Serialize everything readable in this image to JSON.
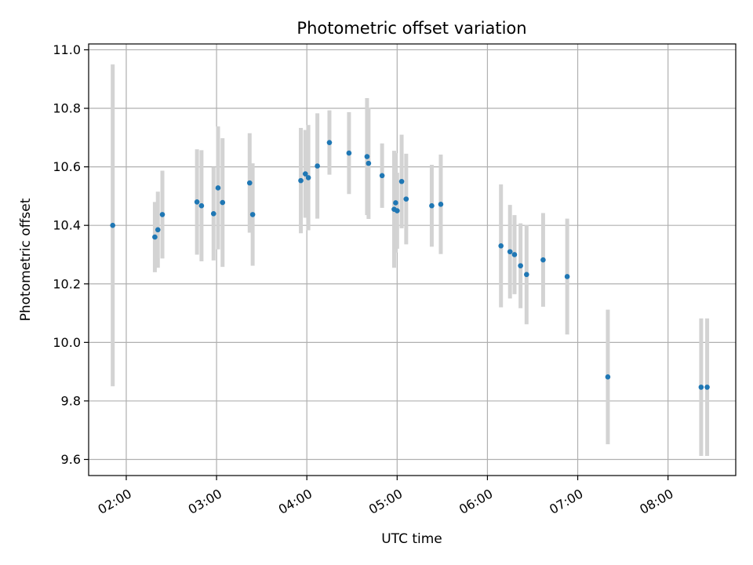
{
  "chart_data": {
    "type": "scatter",
    "title": "Photometric offset variation",
    "xlabel": "UTC time",
    "ylabel": "Photometric offset",
    "x_axis_type": "time",
    "xlim": [
      "01:35",
      "08:45"
    ],
    "ylim": [
      9.545,
      11.02
    ],
    "x_ticks": [
      "02:00",
      "03:00",
      "04:00",
      "05:00",
      "06:00",
      "07:00",
      "08:00"
    ],
    "y_ticks": [
      "9.6",
      "9.8",
      "10.0",
      "10.2",
      "10.4",
      "10.6",
      "10.8",
      "11.0"
    ],
    "grid": true,
    "colors": {
      "point": "#1f77b4",
      "errorbar": "#d3d3d3",
      "grid": "#b0b0b0"
    },
    "series": [
      {
        "x": [
          "01:51",
          "02:19",
          "02:21",
          "02:24",
          "02:47",
          "02:50",
          "02:58",
          "03:01",
          "03:04",
          "03:22",
          "03:24",
          "03:56",
          "03:59",
          "04:01",
          "04:07",
          "04:15",
          "04:28",
          "04:40",
          "04:41",
          "04:50",
          "04:58",
          "04:59",
          "05:00",
          "05:03",
          "05:06",
          "05:23",
          "05:29",
          "06:09",
          "06:15",
          "06:18",
          "06:22",
          "06:26",
          "06:37",
          "06:53",
          "07:20",
          "08:22",
          "08:26"
        ],
        "y": [
          10.4,
          10.36,
          10.385,
          10.437,
          10.48,
          10.467,
          10.44,
          10.528,
          10.478,
          10.545,
          10.437,
          10.553,
          10.576,
          10.563,
          10.603,
          10.683,
          10.647,
          10.635,
          10.612,
          10.57,
          10.455,
          10.477,
          10.45,
          10.55,
          10.49,
          10.467,
          10.472,
          10.33,
          10.31,
          10.3,
          10.262,
          10.232,
          10.282,
          10.225,
          9.882,
          9.847,
          9.847
        ],
        "y_err": [
          0.55,
          0.12,
          0.13,
          0.15,
          0.18,
          0.19,
          0.16,
          0.21,
          0.22,
          0.17,
          0.175,
          0.18,
          0.15,
          0.18,
          0.18,
          0.11,
          0.14,
          0.2,
          0.19,
          0.11,
          0.2,
          0.17,
          0.13,
          0.16,
          0.155,
          0.14,
          0.17,
          0.21,
          0.16,
          0.135,
          0.145,
          0.17,
          0.16,
          0.198,
          0.23,
          0.235,
          0.235
        ]
      }
    ]
  }
}
